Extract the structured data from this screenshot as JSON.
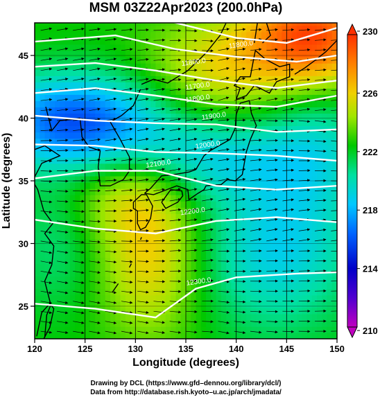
{
  "chart_data": {
    "type": "heatmap",
    "title": "MSM 03Z22Apr2023 (200.0hPa)",
    "xlabel": "Longitude (degrees)",
    "ylabel": "Latitude  (degrees)",
    "xlim": [
      120,
      150
    ],
    "ylim": [
      22.4,
      47.6
    ],
    "xticks": [
      120,
      125,
      130,
      135,
      140,
      145,
      150
    ],
    "yticks": [
      25,
      30,
      35,
      40,
      45
    ],
    "colorbar": {
      "range": [
        210,
        230
      ],
      "ticks": [
        210,
        214,
        218,
        222,
        226,
        230
      ],
      "colors": [
        "#c000c0",
        "#0000c8",
        "#0064ff",
        "#00c8ff",
        "#00e0a0",
        "#00c800",
        "#a0e600",
        "#f0d000",
        "#ff8000",
        "#ff3000"
      ]
    },
    "contours": [
      {
        "label": "11800.0",
        "lon": 140.5,
        "lat": 45.7
      },
      {
        "label": "11800.0",
        "lon": 135.8,
        "lat": 44.3
      },
      {
        "label": "11700.0",
        "lon": 136.2,
        "lat": 42.4
      },
      {
        "label": "11800.0",
        "lon": 136.2,
        "lat": 41.4
      },
      {
        "label": "11900.0",
        "lon": 137.8,
        "lat": 40.0
      },
      {
        "label": "12000.0",
        "lon": 137.2,
        "lat": 37.7
      },
      {
        "label": "12100.0",
        "lon": 132.3,
        "lat": 36.2
      },
      {
        "label": "12200.0",
        "lon": 135.7,
        "lat": 32.4
      },
      {
        "label": "12300.0",
        "lon": 136.3,
        "lat": 26.8
      }
    ],
    "wind": "westerly flow vectors over the domain"
  },
  "credits": {
    "line1": "Drawing by DCL (https://www.gfd–dennou.org/library/dcl/)",
    "line2": "Data from http://database.rish.kyoto–u.ac.jp/arch/jmadata/"
  }
}
